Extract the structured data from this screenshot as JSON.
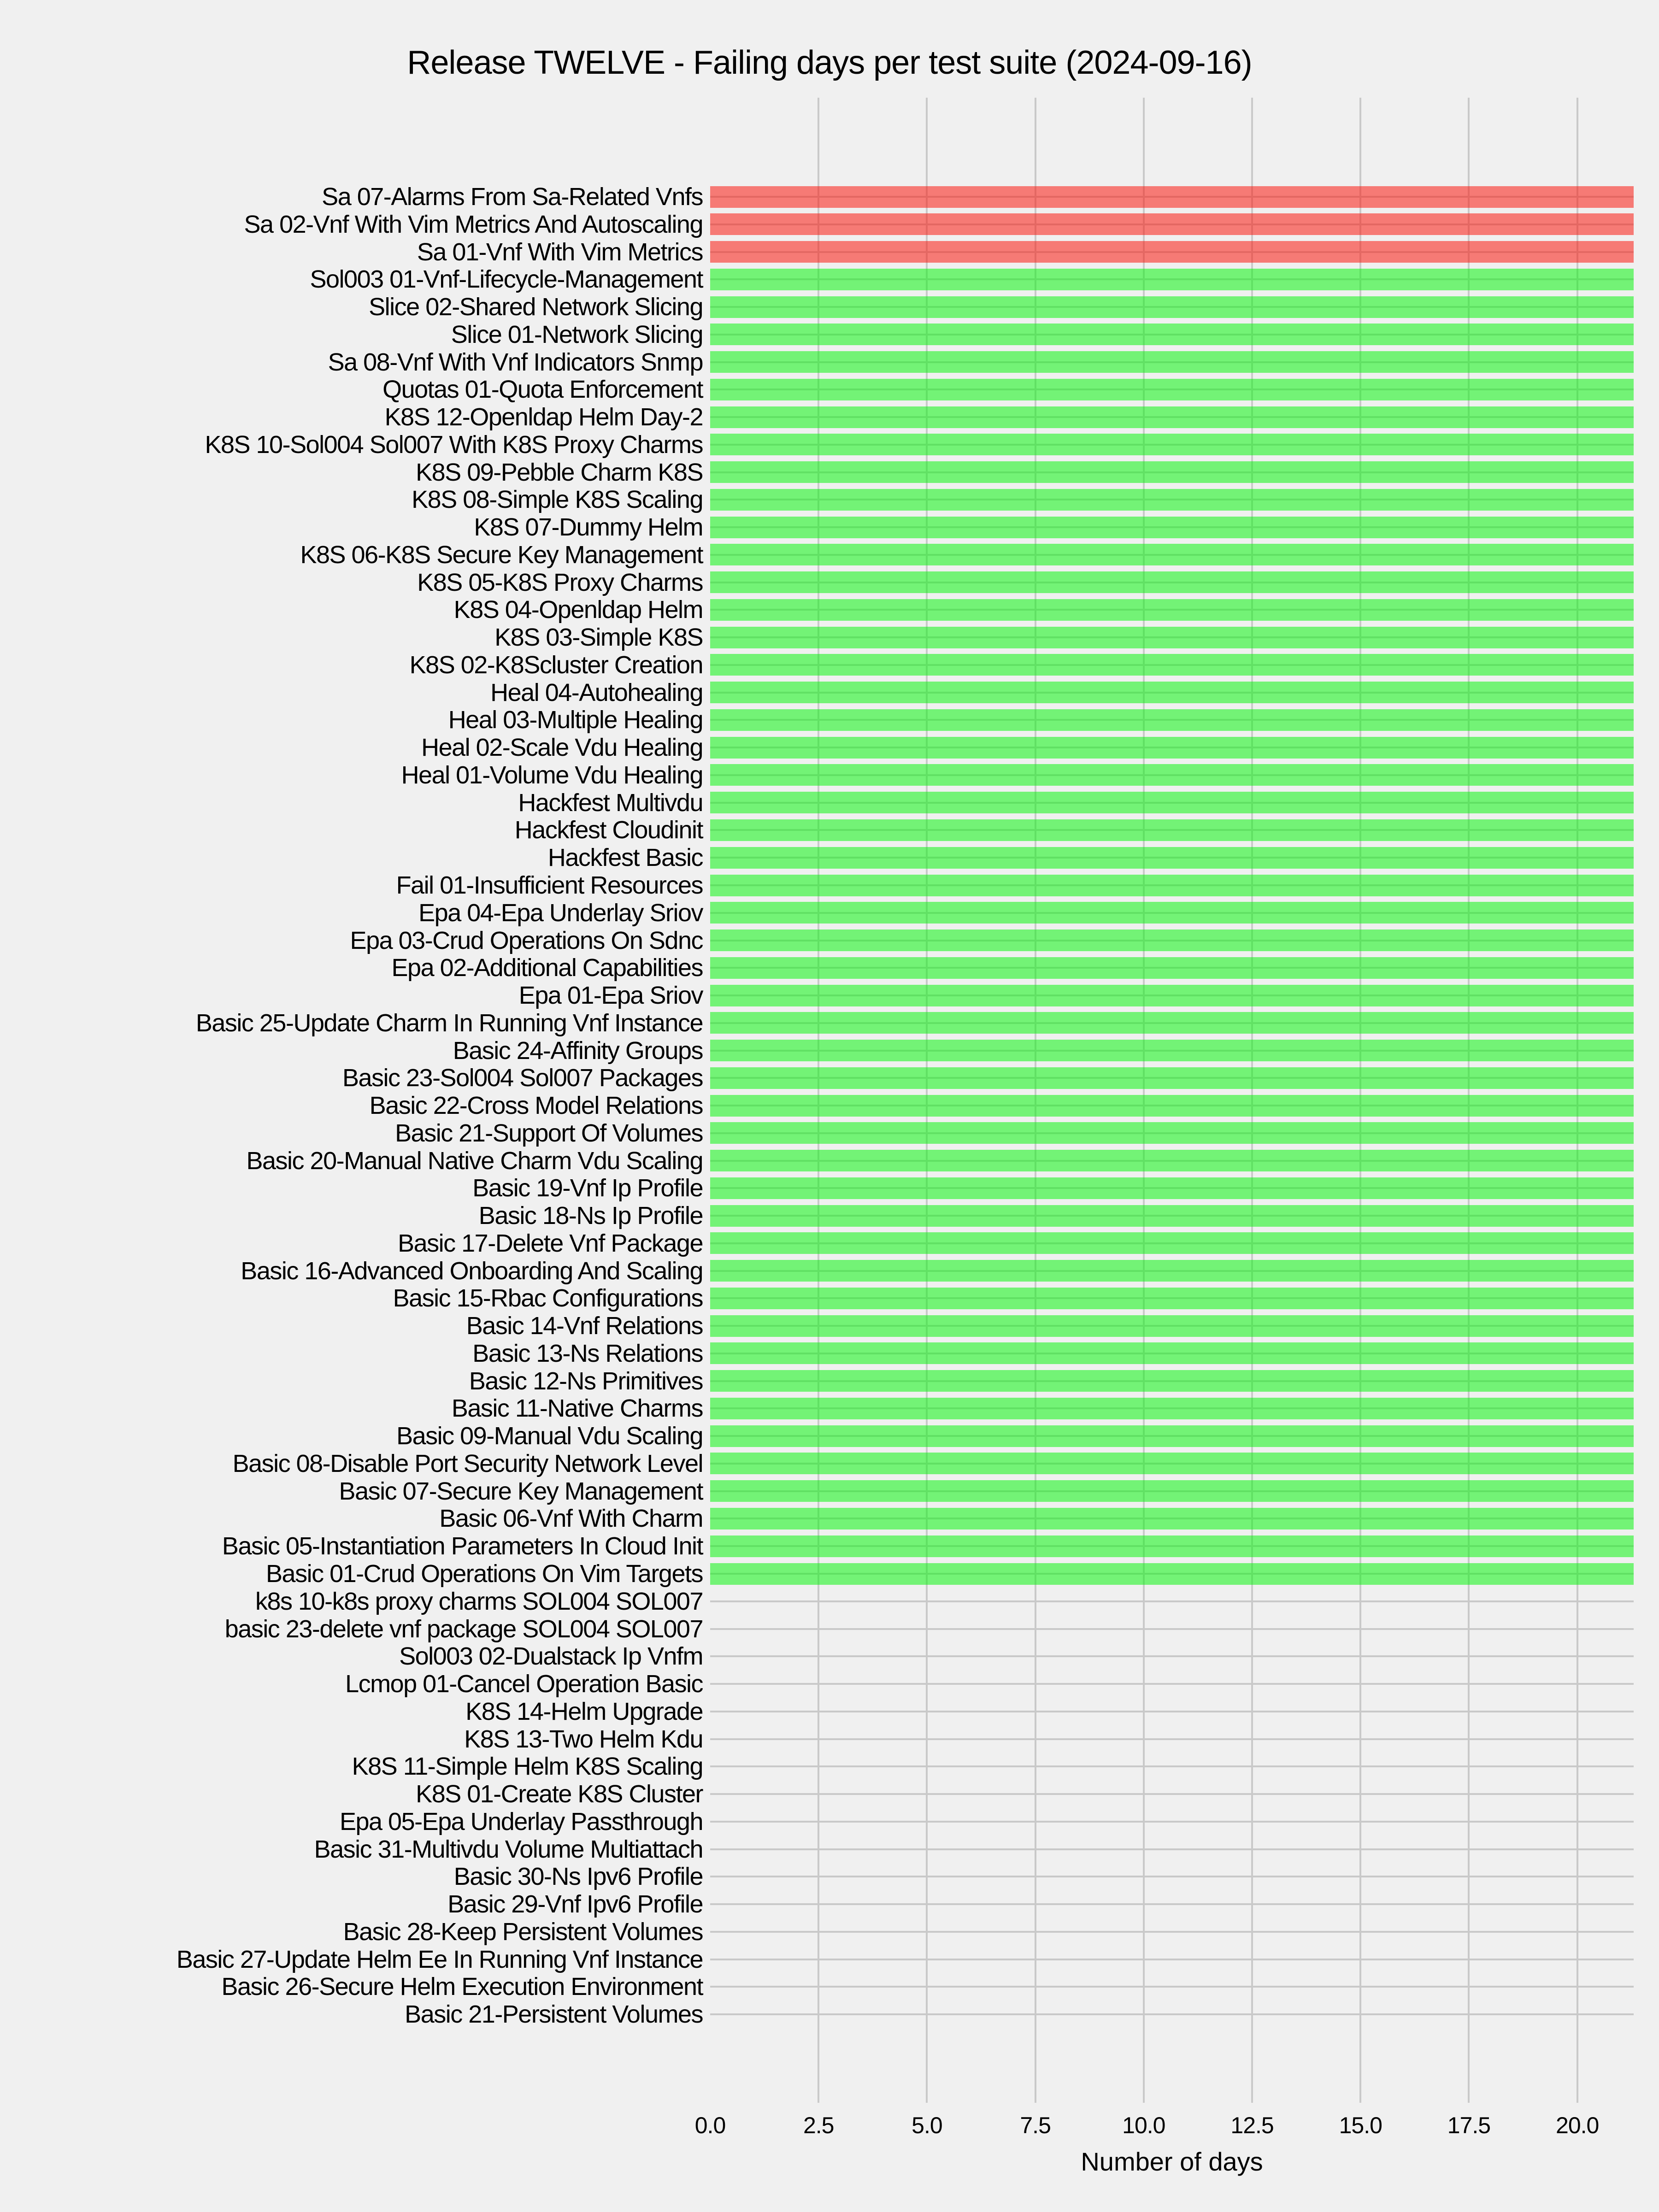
{
  "chart_data": {
    "type": "bar",
    "orientation": "horizontal",
    "title": "Release TWELVE - Failing days per test suite (2024-09-16)",
    "xlabel": "Number of days",
    "xlim": [
      0,
      21.3
    ],
    "xticks": [
      0.0,
      2.5,
      5.0,
      7.5,
      10.0,
      12.5,
      15.0,
      17.5,
      20.0
    ],
    "grid": true,
    "legend": false,
    "categories": [
      "Sa 07-Alarms From Sa-Related Vnfs",
      "Sa 02-Vnf With Vim Metrics And Autoscaling",
      "Sa 01-Vnf With Vim Metrics",
      "Sol003 01-Vnf-Lifecycle-Management",
      "Slice 02-Shared Network Slicing",
      "Slice 01-Network Slicing",
      "Sa 08-Vnf With Vnf Indicators Snmp",
      "Quotas 01-Quota Enforcement",
      "K8S 12-Openldap Helm Day-2",
      "K8S 10-Sol004 Sol007 With K8S Proxy Charms",
      "K8S 09-Pebble Charm K8S",
      "K8S 08-Simple K8S Scaling",
      "K8S 07-Dummy Helm",
      "K8S 06-K8S Secure Key Management",
      "K8S 05-K8S Proxy Charms",
      "K8S 04-Openldap Helm",
      "K8S 03-Simple K8S",
      "K8S 02-K8Scluster Creation",
      "Heal 04-Autohealing",
      "Heal 03-Multiple Healing",
      "Heal 02-Scale Vdu Healing",
      "Heal 01-Volume Vdu Healing",
      "Hackfest Multivdu",
      "Hackfest Cloudinit",
      "Hackfest Basic",
      "Fail 01-Insufficient Resources",
      "Epa 04-Epa Underlay Sriov",
      "Epa 03-Crud Operations On Sdnc",
      "Epa 02-Additional Capabilities",
      "Epa 01-Epa Sriov",
      "Basic 25-Update Charm In Running Vnf Instance",
      "Basic 24-Affinity Groups",
      "Basic 23-Sol004 Sol007 Packages",
      "Basic 22-Cross Model Relations",
      "Basic 21-Support Of Volumes",
      "Basic 20-Manual Native Charm Vdu Scaling",
      "Basic 19-Vnf Ip Profile",
      "Basic 18-Ns Ip Profile",
      "Basic 17-Delete Vnf Package",
      "Basic 16-Advanced Onboarding And Scaling",
      "Basic 15-Rbac Configurations",
      "Basic 14-Vnf Relations",
      "Basic 13-Ns Relations",
      "Basic 12-Ns Primitives",
      "Basic 11-Native Charms",
      "Basic 09-Manual Vdu Scaling",
      "Basic 08-Disable Port Security Network Level",
      "Basic 07-Secure Key Management",
      "Basic 06-Vnf With Charm",
      "Basic 05-Instantiation Parameters In Cloud Init",
      "Basic 01-Crud Operations On Vim Targets",
      "k8s 10-k8s proxy charms SOL004 SOL007",
      "basic 23-delete vnf package SOL004 SOL007",
      "Sol003 02-Dualstack Ip Vnfm",
      "Lcmop 01-Cancel Operation Basic",
      "K8S 14-Helm Upgrade",
      "K8S 13-Two Helm Kdu",
      "K8S 11-Simple Helm K8S Scaling",
      "K8S 01-Create K8S Cluster",
      "Epa 05-Epa Underlay Passthrough",
      "Basic 31-Multivdu Volume Multiattach",
      "Basic 30-Ns Ipv6 Profile",
      "Basic 29-Vnf Ipv6 Profile",
      "Basic 28-Keep Persistent Volumes",
      "Basic 27-Update Helm Ee In Running Vnf Instance",
      "Basic 26-Secure Helm Execution Environment",
      "Basic 21-Persistent Volumes"
    ],
    "values": [
      21.3,
      21.3,
      21.3,
      21.3,
      21.3,
      21.3,
      21.3,
      21.3,
      21.3,
      21.3,
      21.3,
      21.3,
      21.3,
      21.3,
      21.3,
      21.3,
      21.3,
      21.3,
      21.3,
      21.3,
      21.3,
      21.3,
      21.3,
      21.3,
      21.3,
      21.3,
      21.3,
      21.3,
      21.3,
      21.3,
      21.3,
      21.3,
      21.3,
      21.3,
      21.3,
      21.3,
      21.3,
      21.3,
      21.3,
      21.3,
      21.3,
      21.3,
      21.3,
      21.3,
      21.3,
      21.3,
      21.3,
      21.3,
      21.3,
      21.3,
      21.3,
      0,
      0,
      0,
      0,
      0,
      0,
      0,
      0,
      0,
      0,
      0,
      0,
      0,
      0,
      0,
      0
    ],
    "bar_colors": [
      "red",
      "red",
      "red",
      "green",
      "green",
      "green",
      "green",
      "green",
      "green",
      "green",
      "green",
      "green",
      "green",
      "green",
      "green",
      "green",
      "green",
      "green",
      "green",
      "green",
      "green",
      "green",
      "green",
      "green",
      "green",
      "green",
      "green",
      "green",
      "green",
      "green",
      "green",
      "green",
      "green",
      "green",
      "green",
      "green",
      "green",
      "green",
      "green",
      "green",
      "green",
      "green",
      "green",
      "green",
      "green",
      "green",
      "green",
      "green",
      "green",
      "green",
      "green",
      "none",
      "none",
      "none",
      "none",
      "none",
      "none",
      "none",
      "none",
      "none",
      "none",
      "none",
      "none",
      "none",
      "none",
      "none",
      "none"
    ],
    "colors": {
      "background": "#f0f0f0",
      "gridline": "#c9c9c9",
      "bar_red": "#f57b76",
      "bar_green": "#74f377",
      "bar_red_rgba": "rgba(251,23,13,0.54)",
      "bar_green_rgba": "rgba(10,246,15,0.54)",
      "text": "#000000"
    }
  }
}
